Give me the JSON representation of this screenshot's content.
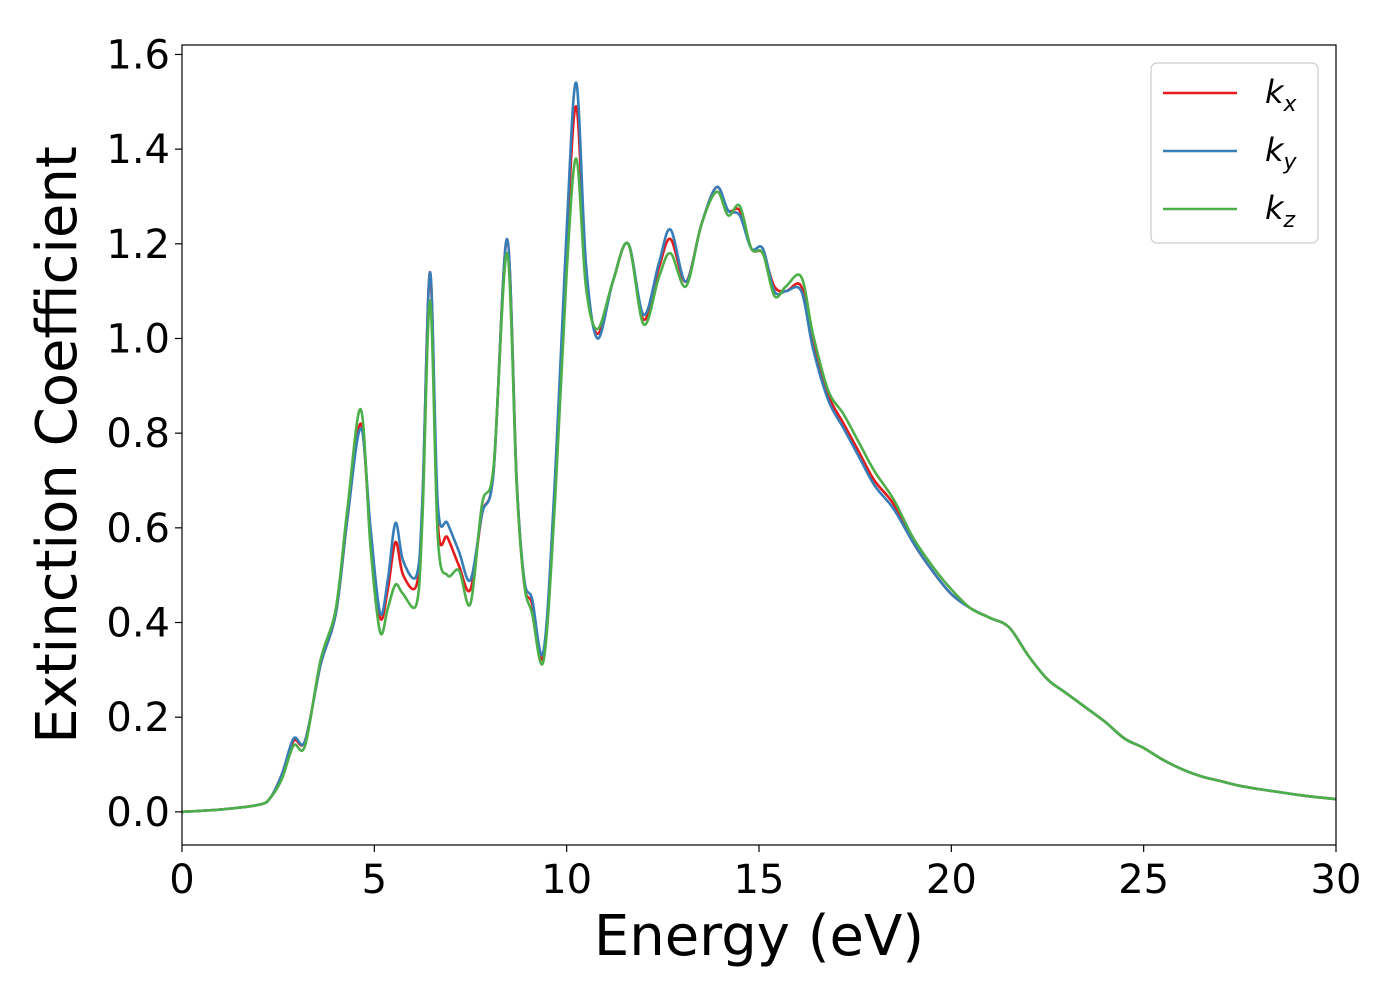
{
  "chart_data": {
    "type": "line",
    "xlabel": "Energy (eV)",
    "ylabel": "Extinction Coefficient",
    "xlim": [
      0,
      30
    ],
    "ylim": [
      -0.07,
      1.62
    ],
    "xticks": [
      "0",
      "5",
      "10",
      "15",
      "20",
      "25",
      "30"
    ],
    "yticks": [
      "0.0",
      "0.2",
      "0.4",
      "0.6",
      "0.8",
      "1.0",
      "1.2",
      "1.4",
      "1.6"
    ],
    "grid": false,
    "legend_position": "top-right",
    "series": [
      {
        "name": "k",
        "subscript": "x",
        "color": "#e41a1c",
        "x": [
          0,
          1,
          2,
          2.3,
          2.6,
          2.9,
          3.2,
          3.6,
          4.0,
          4.3,
          4.65,
          4.9,
          5.15,
          5.35,
          5.55,
          5.75,
          6.1,
          6.25,
          6.45,
          6.65,
          6.9,
          7.2,
          7.5,
          7.8,
          8.1,
          8.45,
          8.7,
          8.9,
          9.1,
          9.4,
          9.7,
          10.0,
          10.25,
          10.5,
          10.8,
          11.2,
          11.6,
          12.0,
          12.4,
          12.7,
          13.1,
          13.5,
          13.9,
          14.2,
          14.5,
          14.8,
          15.1,
          15.4,
          15.7,
          16.1,
          16.4,
          16.8,
          17.2,
          17.6,
          18.0,
          18.5,
          19.0,
          19.5,
          20.0,
          20.5,
          21.0,
          21.5,
          22.0,
          22.5,
          23.0,
          23.5,
          24.0,
          24.5,
          25.0,
          25.5,
          26.0,
          26.5,
          27.0,
          27.5,
          28.0,
          28.5,
          29.0,
          29.5,
          30.0
        ],
        "values": [
          0.0,
          0.005,
          0.015,
          0.03,
          0.08,
          0.15,
          0.15,
          0.31,
          0.42,
          0.62,
          0.82,
          0.58,
          0.41,
          0.47,
          0.57,
          0.5,
          0.48,
          0.65,
          1.14,
          0.61,
          0.58,
          0.52,
          0.47,
          0.63,
          0.72,
          1.21,
          0.7,
          0.48,
          0.44,
          0.33,
          0.7,
          1.2,
          1.49,
          1.14,
          1.01,
          1.12,
          1.2,
          1.04,
          1.15,
          1.21,
          1.12,
          1.24,
          1.32,
          1.27,
          1.27,
          1.19,
          1.18,
          1.11,
          1.1,
          1.11,
          0.99,
          0.88,
          0.82,
          0.76,
          0.7,
          0.65,
          0.57,
          0.51,
          0.46,
          0.43,
          0.41,
          0.39,
          0.33,
          0.28,
          0.25,
          0.22,
          0.19,
          0.155,
          0.135,
          0.11,
          0.09,
          0.075,
          0.065,
          0.055,
          0.048,
          0.042,
          0.036,
          0.031,
          0.027
        ]
      },
      {
        "name": "k",
        "subscript": "y",
        "color": "#377eb8",
        "x": [
          0,
          1,
          2,
          2.3,
          2.6,
          2.9,
          3.2,
          3.6,
          4.0,
          4.3,
          4.65,
          4.9,
          5.15,
          5.35,
          5.55,
          5.75,
          6.1,
          6.25,
          6.45,
          6.65,
          6.9,
          7.2,
          7.5,
          7.8,
          8.1,
          8.45,
          8.7,
          8.9,
          9.1,
          9.4,
          9.7,
          10.0,
          10.25,
          10.5,
          10.8,
          11.2,
          11.6,
          12.0,
          12.4,
          12.7,
          13.1,
          13.5,
          13.9,
          14.2,
          14.5,
          14.8,
          15.1,
          15.4,
          15.7,
          16.1,
          16.4,
          16.8,
          17.2,
          17.6,
          18.0,
          18.5,
          19.0,
          19.5,
          20.0,
          20.5,
          21.0,
          21.5,
          22.0,
          22.5,
          23.0,
          23.5,
          24.0,
          24.5,
          25.0,
          25.5,
          26.0,
          26.5,
          27.0,
          27.5,
          28.0,
          28.5,
          29.0,
          29.5,
          30.0
        ],
        "values": [
          0.0,
          0.005,
          0.015,
          0.03,
          0.08,
          0.155,
          0.15,
          0.31,
          0.42,
          0.62,
          0.81,
          0.6,
          0.42,
          0.49,
          0.61,
          0.53,
          0.5,
          0.66,
          1.14,
          0.65,
          0.61,
          0.55,
          0.49,
          0.63,
          0.72,
          1.21,
          0.7,
          0.49,
          0.45,
          0.34,
          0.71,
          1.23,
          1.54,
          1.16,
          1.0,
          1.12,
          1.2,
          1.05,
          1.16,
          1.23,
          1.12,
          1.24,
          1.32,
          1.27,
          1.26,
          1.19,
          1.19,
          1.1,
          1.1,
          1.1,
          0.98,
          0.87,
          0.81,
          0.75,
          0.69,
          0.64,
          0.57,
          0.51,
          0.46,
          0.43,
          0.41,
          0.39,
          0.33,
          0.28,
          0.25,
          0.22,
          0.19,
          0.155,
          0.135,
          0.11,
          0.09,
          0.075,
          0.065,
          0.055,
          0.048,
          0.042,
          0.036,
          0.031,
          0.027
        ]
      },
      {
        "name": "k",
        "subscript": "z",
        "color": "#4daf4a",
        "x": [
          0,
          1,
          2,
          2.3,
          2.6,
          2.9,
          3.2,
          3.6,
          4.0,
          4.3,
          4.65,
          4.9,
          5.15,
          5.35,
          5.55,
          5.75,
          6.1,
          6.25,
          6.45,
          6.65,
          6.9,
          7.2,
          7.5,
          7.8,
          8.1,
          8.45,
          8.7,
          8.9,
          9.1,
          9.4,
          9.7,
          10.0,
          10.25,
          10.5,
          10.8,
          11.2,
          11.6,
          12.0,
          12.4,
          12.7,
          13.1,
          13.5,
          13.9,
          14.2,
          14.5,
          14.8,
          15.1,
          15.4,
          15.7,
          16.1,
          16.4,
          16.8,
          17.2,
          17.6,
          18.0,
          18.5,
          19.0,
          19.5,
          20.0,
          20.5,
          21.0,
          21.5,
          22.0,
          22.5,
          23.0,
          23.5,
          24.0,
          24.5,
          25.0,
          25.5,
          26.0,
          26.5,
          27.0,
          27.5,
          28.0,
          28.5,
          29.0,
          29.5,
          30.0
        ],
        "values": [
          0.0,
          0.005,
          0.015,
          0.03,
          0.07,
          0.14,
          0.14,
          0.32,
          0.43,
          0.64,
          0.85,
          0.56,
          0.38,
          0.43,
          0.48,
          0.46,
          0.44,
          0.62,
          1.08,
          0.58,
          0.5,
          0.51,
          0.44,
          0.65,
          0.73,
          1.18,
          0.69,
          0.48,
          0.42,
          0.32,
          0.66,
          1.14,
          1.38,
          1.11,
          1.02,
          1.12,
          1.2,
          1.03,
          1.13,
          1.18,
          1.11,
          1.24,
          1.31,
          1.26,
          1.28,
          1.19,
          1.18,
          1.09,
          1.11,
          1.13,
          1.01,
          0.89,
          0.84,
          0.78,
          0.72,
          0.66,
          0.58,
          0.52,
          0.47,
          0.43,
          0.41,
          0.39,
          0.33,
          0.28,
          0.25,
          0.22,
          0.19,
          0.155,
          0.135,
          0.11,
          0.09,
          0.075,
          0.065,
          0.055,
          0.048,
          0.042,
          0.036,
          0.031,
          0.027
        ]
      }
    ]
  }
}
